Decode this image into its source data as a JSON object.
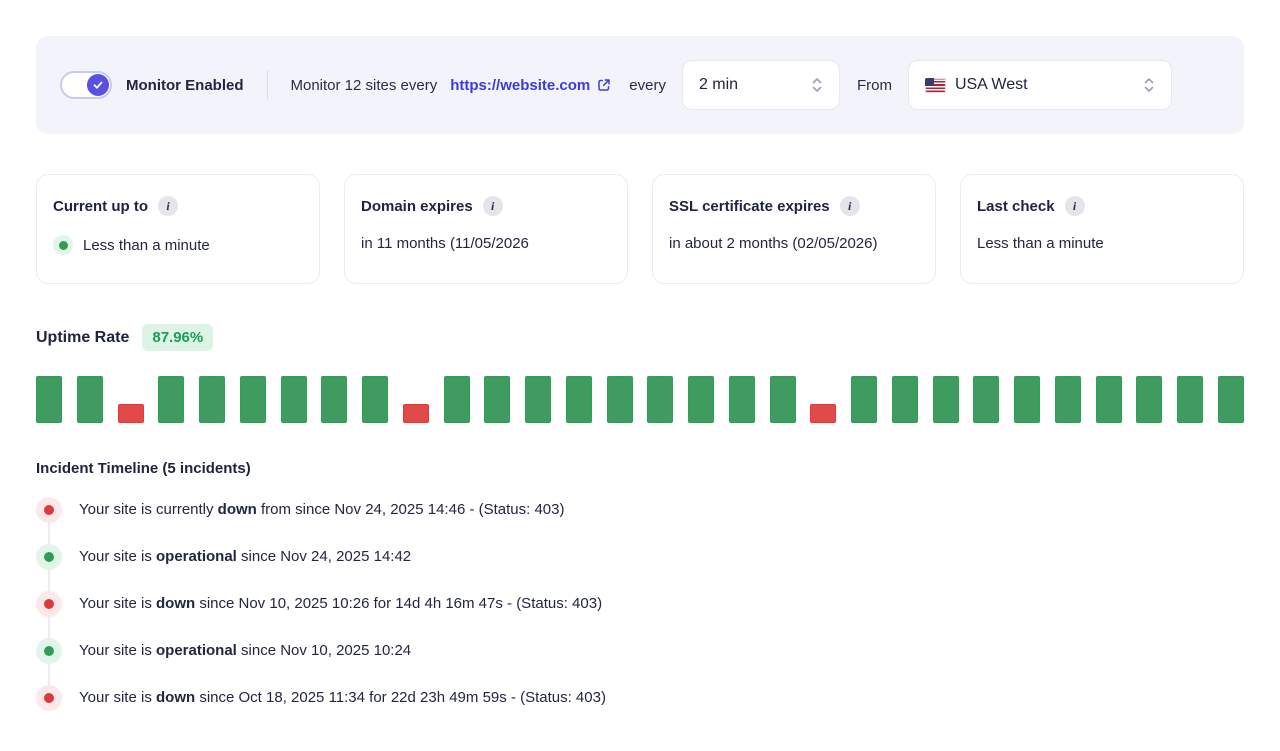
{
  "colors": {
    "topbar_bg": "#f2f3fb",
    "accent_indigo": "#5a50e0",
    "link_indigo": "#3c3cdd",
    "up_green": "#3f9b60",
    "down_red": "#e14a4a",
    "badge_bg": "#dcf3e5",
    "badge_text": "#199d58",
    "text_dark": "#232642"
  },
  "topbar": {
    "toggle_label": "Monitor Enabled",
    "monitor_text": "Monitor 12 sites every",
    "site_url": "https://website.com",
    "every_label": "every",
    "interval_value": "2 min",
    "from_label": "From",
    "region_value": "USA West",
    "region_flag": "usa-flag"
  },
  "cards": [
    {
      "title": "Current up to",
      "info_icon": "i",
      "value": "Less than a minute",
      "status_dot": "operational"
    },
    {
      "title": "Domain expires",
      "info_icon": "i",
      "value": "in 11 months (11/05/2026"
    },
    {
      "title": "SSL certificate expires",
      "info_icon": "i",
      "value": "in about 2 months (02/05/2026)"
    },
    {
      "title": "Last check",
      "info_icon": "i",
      "value": "Less than a minute"
    }
  ],
  "uptime": {
    "label": "Uptime Rate",
    "rate": "87.96%",
    "bars": [
      "up",
      "up",
      "down",
      "up",
      "up",
      "up",
      "up",
      "up",
      "up",
      "down",
      "up",
      "up",
      "up",
      "up",
      "up",
      "up",
      "up",
      "up",
      "up",
      "down",
      "up",
      "up",
      "up",
      "up",
      "up",
      "up",
      "up",
      "up",
      "up",
      "up"
    ]
  },
  "incidents": {
    "heading": "Incident Timeline (5 incidents)",
    "items": [
      {
        "status": "down",
        "prefix": "Your site is currently ",
        "bold": "down",
        "suffix": " from since Nov 24, 2025 14:46 - (Status: 403)"
      },
      {
        "status": "up",
        "prefix": "Your site is ",
        "bold": "operational",
        "suffix": " since Nov 24, 2025 14:42"
      },
      {
        "status": "down",
        "prefix": "Your site is ",
        "bold": "down",
        "suffix": " since Nov 10, 2025 10:26 for 14d 4h 16m 47s - (Status: 403)"
      },
      {
        "status": "up",
        "prefix": "Your site is ",
        "bold": "operational",
        "suffix": " since Nov 10, 2025 10:24"
      },
      {
        "status": "down",
        "prefix": "Your site is ",
        "bold": "down",
        "suffix": " since Oct 18, 2025 11:34 for 22d 23h 49m 59s - (Status: 403)"
      }
    ]
  }
}
